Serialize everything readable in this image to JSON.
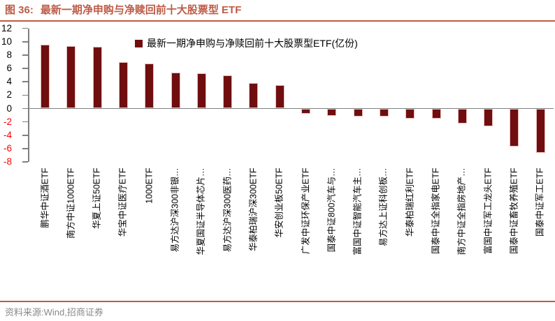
{
  "header": {
    "figure_no": "图 36:",
    "title": "最新一期净申购与净赎回前十大股票型 ETF"
  },
  "footer": {
    "source": "资料来源:Wind,招商证券"
  },
  "colors": {
    "accent": "#BD5B46",
    "bar_fill": "#700E0F",
    "bar_edge": "#E6BDBC",
    "axis_gray": "#7f7f7f",
    "negative_tick": "#FF0000",
    "source_text": "#8a8a8a"
  },
  "chart_data": {
    "type": "bar",
    "legend": "最新一期净申购与净赎回前十大股票型ETF(亿份)",
    "legend_position": "top-center",
    "unit": "亿份",
    "grid": false,
    "ylim": [
      -8,
      12
    ],
    "ytick_step": 2,
    "categories": [
      "鹏华中证酒ETF",
      "南方中证1000ETF",
      "华夏上证50ETF",
      "华宝中证医疗ETF",
      "1000ETF",
      "易方达沪深300非银…",
      "华夏国证半导体芯片…",
      "易方达沪深300医药…",
      "华泰柏瑞沪深300ETF",
      "华安创业板50ETF",
      "广发中证环保产业ETF",
      "国泰中证800汽车与…",
      "富国中证智能汽车主…",
      "易方达上证科创板…",
      "华泰柏瑞红利ETF",
      "国泰中证全指家电ETF",
      "南方中证全指房地产…",
      "富国中证军工龙头ETF",
      "国泰中证畜牧养殖ETF",
      "国泰中证军工ETF"
    ],
    "values": [
      9.6,
      9.4,
      9.2,
      6.9,
      6.7,
      5.4,
      5.3,
      5.0,
      3.8,
      3.5,
      -0.8,
      -1.1,
      -1.2,
      -1.2,
      -1.5,
      -1.5,
      -2.2,
      -2.7,
      -5.7,
      -6.6
    ]
  }
}
